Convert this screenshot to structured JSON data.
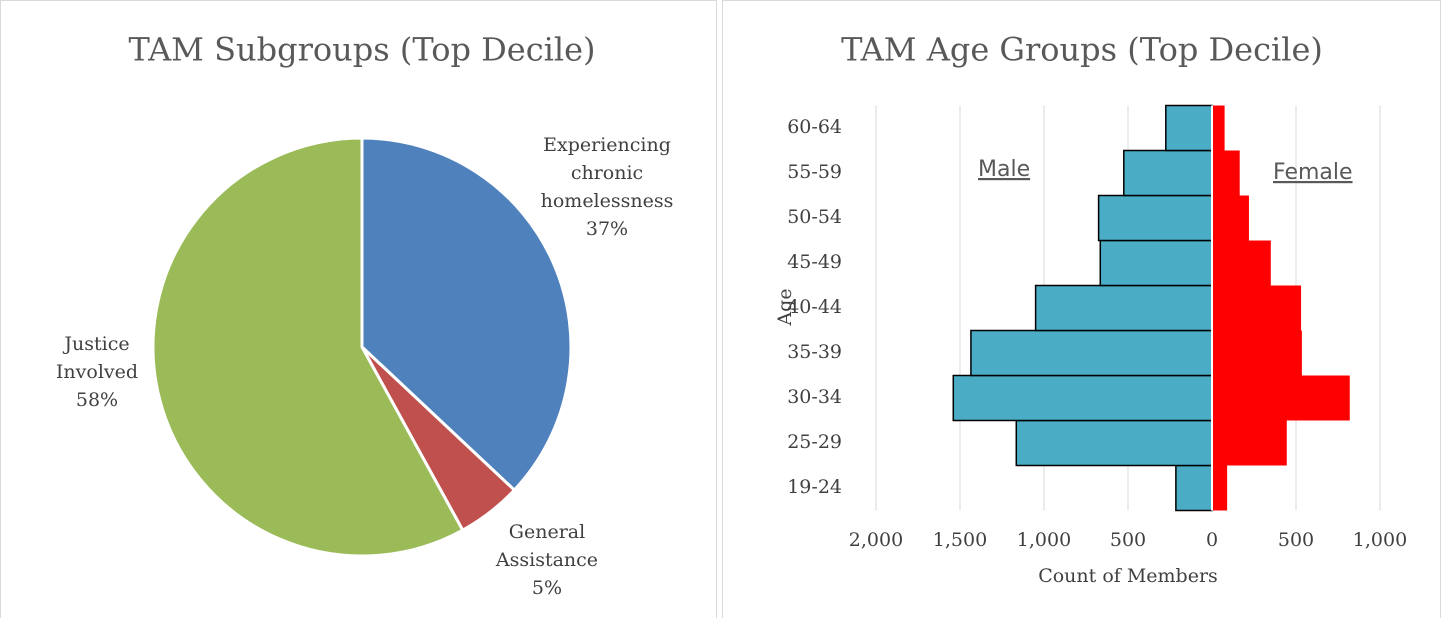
{
  "chart_data": [
    {
      "type": "pie",
      "title": "TAM Subgroups (Top Decile)",
      "categories": [
        "Experiencing chronic homelessness",
        "General Assistance",
        "Justice Involved"
      ],
      "values": [
        37,
        5,
        58
      ],
      "value_labels": [
        "37%",
        "5%",
        "58%"
      ],
      "colors": [
        "#4f81bd",
        "#c0504d",
        "#9bbb59"
      ]
    },
    {
      "type": "pyramid",
      "title": "TAM Age Groups (Top Decile)",
      "y_label": "Age",
      "x_label": "Count of Members",
      "categories": [
        "19-24",
        "25-29",
        "30-34",
        "35-39",
        "40-44",
        "45-49",
        "50-54",
        "55-59",
        "60-64"
      ],
      "series": [
        {
          "name": "Male",
          "color": "#4bacc6",
          "values": [
            -215,
            -1165,
            -1540,
            -1435,
            -1050,
            -665,
            -675,
            -525,
            -275
          ]
        },
        {
          "name": "Female",
          "color": "#ff0000",
          "values": [
            90,
            445,
            820,
            535,
            530,
            350,
            220,
            165,
            75
          ]
        }
      ],
      "xlim": [
        -2000,
        1000
      ],
      "xticks": [
        {
          "value": -2000,
          "label": "2,000"
        },
        {
          "value": -1500,
          "label": "1,500"
        },
        {
          "value": -1000,
          "label": "1,000"
        },
        {
          "value": -500,
          "label": "500"
        },
        0,
        500,
        {
          "value": 1000,
          "label": "1,000"
        }
      ],
      "grid": true
    }
  ]
}
